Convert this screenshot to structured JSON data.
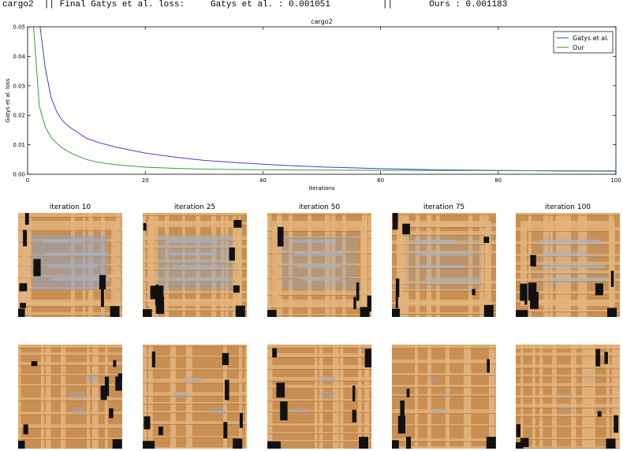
{
  "header": {
    "text": "cargo2  || Final Gatys et al. loss:     Gatys et al. : 0.001051          ||       Ours : 0.001183"
  },
  "chart_data": {
    "type": "line",
    "title": "cargo2",
    "xlabel": "iterations",
    "ylabel": "Gatys et al. loss",
    "xlim": [
      0,
      100
    ],
    "ylim": [
      0,
      0.05
    ],
    "xticks": [
      "0",
      "20",
      "40",
      "60",
      "80",
      "100"
    ],
    "yticks": [
      "0.00",
      "0.01",
      "0.02",
      "0.03",
      "0.04",
      "0.05"
    ],
    "grid": false,
    "legend_position": "top-right",
    "series": [
      {
        "name": "Gatys et al.",
        "color": "#4040cc",
        "x": [
          1,
          2,
          3,
          4,
          5,
          6,
          7,
          8,
          10,
          12,
          15,
          20,
          25,
          30,
          35,
          40,
          45,
          50,
          60,
          70,
          80,
          90,
          100
        ],
        "y": [
          0.065,
          0.052,
          0.036,
          0.026,
          0.021,
          0.018,
          0.0162,
          0.0148,
          0.0122,
          0.0108,
          0.0092,
          0.0072,
          0.0058,
          0.0047,
          0.004,
          0.0034,
          0.0029,
          0.0025,
          0.0019,
          0.0015,
          0.0013,
          0.0011,
          0.00105
        ]
      },
      {
        "name": "Our",
        "color": "#3a9a3a",
        "x": [
          1,
          2,
          3,
          4,
          5,
          6,
          7,
          8,
          10,
          12,
          15,
          20,
          25,
          30,
          40,
          50,
          60,
          70,
          80,
          90,
          100
        ],
        "y": [
          0.05,
          0.023,
          0.016,
          0.0125,
          0.0104,
          0.0088,
          0.0076,
          0.0066,
          0.005,
          0.0041,
          0.0032,
          0.0024,
          0.002,
          0.00175,
          0.0015,
          0.00138,
          0.0013,
          0.00125,
          0.00122,
          0.0012,
          0.00118
        ]
      }
    ]
  },
  "gallery": {
    "captions": [
      "iteration 10",
      "iteration 25",
      "iteration 50",
      "iteration 75",
      "iteration 100"
    ]
  },
  "colors": {
    "wood_light": "#e3b47c",
    "wood_mid": "#c98f52",
    "wood_dark": "#8a5a2c",
    "shadow": "#111111",
    "blue_patch": "#8ea3c4"
  }
}
